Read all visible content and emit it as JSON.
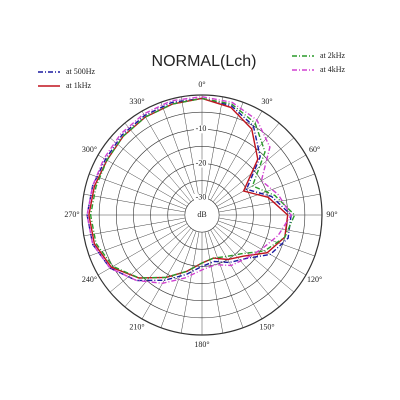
{
  "chart_data": {
    "type": "polar",
    "title": "NORMAL(Lch)",
    "r_unit": "dB",
    "rlim": [
      -35,
      0
    ],
    "rticks": [
      -30,
      -20,
      -10
    ],
    "rgrid": [
      -30,
      -25,
      -20,
      -15,
      -10,
      -5,
      0
    ],
    "thetaticks": [
      {
        "value": 0,
        "label": "0°"
      },
      {
        "value": 30,
        "label": "30°"
      },
      {
        "value": 60,
        "label": "60°"
      },
      {
        "value": 90,
        "label": "90°"
      },
      {
        "value": 120,
        "label": "120°"
      },
      {
        "value": 150,
        "label": "150°"
      },
      {
        "value": 180,
        "label": "180°"
      },
      {
        "value": 210,
        "label": "210°"
      },
      {
        "value": 240,
        "label": "240°"
      },
      {
        "value": 270,
        "label": "270°"
      },
      {
        "value": 300,
        "label": "300°"
      },
      {
        "value": 330,
        "label": "330°"
      }
    ],
    "theta": [
      0,
      15,
      30,
      45,
      60,
      75,
      90,
      105,
      120,
      135,
      150,
      165,
      180,
      195,
      210,
      225,
      240,
      255,
      270,
      285,
      300,
      315,
      330,
      345
    ],
    "series": [
      {
        "name": "at 500Hz",
        "color": "#1a1aa0",
        "style": "dashdot",
        "values": [
          -1,
          -2,
          -5,
          -11,
          -20,
          -14,
          -9,
          -9,
          -12,
          -17,
          -19,
          -21,
          -20,
          -17,
          -13,
          -8,
          -4,
          -2,
          -1.5,
          -2,
          -2.5,
          -2,
          -1.5,
          -1
        ]
      },
      {
        "name": "at 1kHz",
        "color": "#c0141e",
        "style": "solid",
        "values": [
          -1,
          -2.5,
          -6,
          -12,
          -21,
          -15,
          -10,
          -10,
          -13,
          -18,
          -20,
          -22,
          -21,
          -18,
          -14,
          -9,
          -4.5,
          -2.5,
          -2,
          -2.5,
          -3,
          -2.5,
          -2,
          -1.5
        ]
      },
      {
        "name": "at 2kHz",
        "color": "#2a9a2a",
        "style": "dashdot",
        "values": [
          -1,
          -1.5,
          -4,
          -9,
          -18,
          -13,
          -8,
          -10,
          -14,
          -19,
          -21,
          -22,
          -21,
          -18,
          -14,
          -9,
          -5,
          -3,
          -2.5,
          -3,
          -3,
          -2.5,
          -2,
          -1.5
        ]
      },
      {
        "name": "at 4kHz",
        "color": "#d040d0",
        "style": "dashdot",
        "values": [
          -0.5,
          -1,
          -3,
          -7,
          -15,
          -12,
          -9,
          -12,
          -15,
          -17,
          -18,
          -20,
          -19,
          -16,
          -12,
          -8,
          -4,
          -2,
          -1.5,
          -2,
          -2,
          -1.5,
          -1,
          -0.5
        ]
      }
    ]
  }
}
